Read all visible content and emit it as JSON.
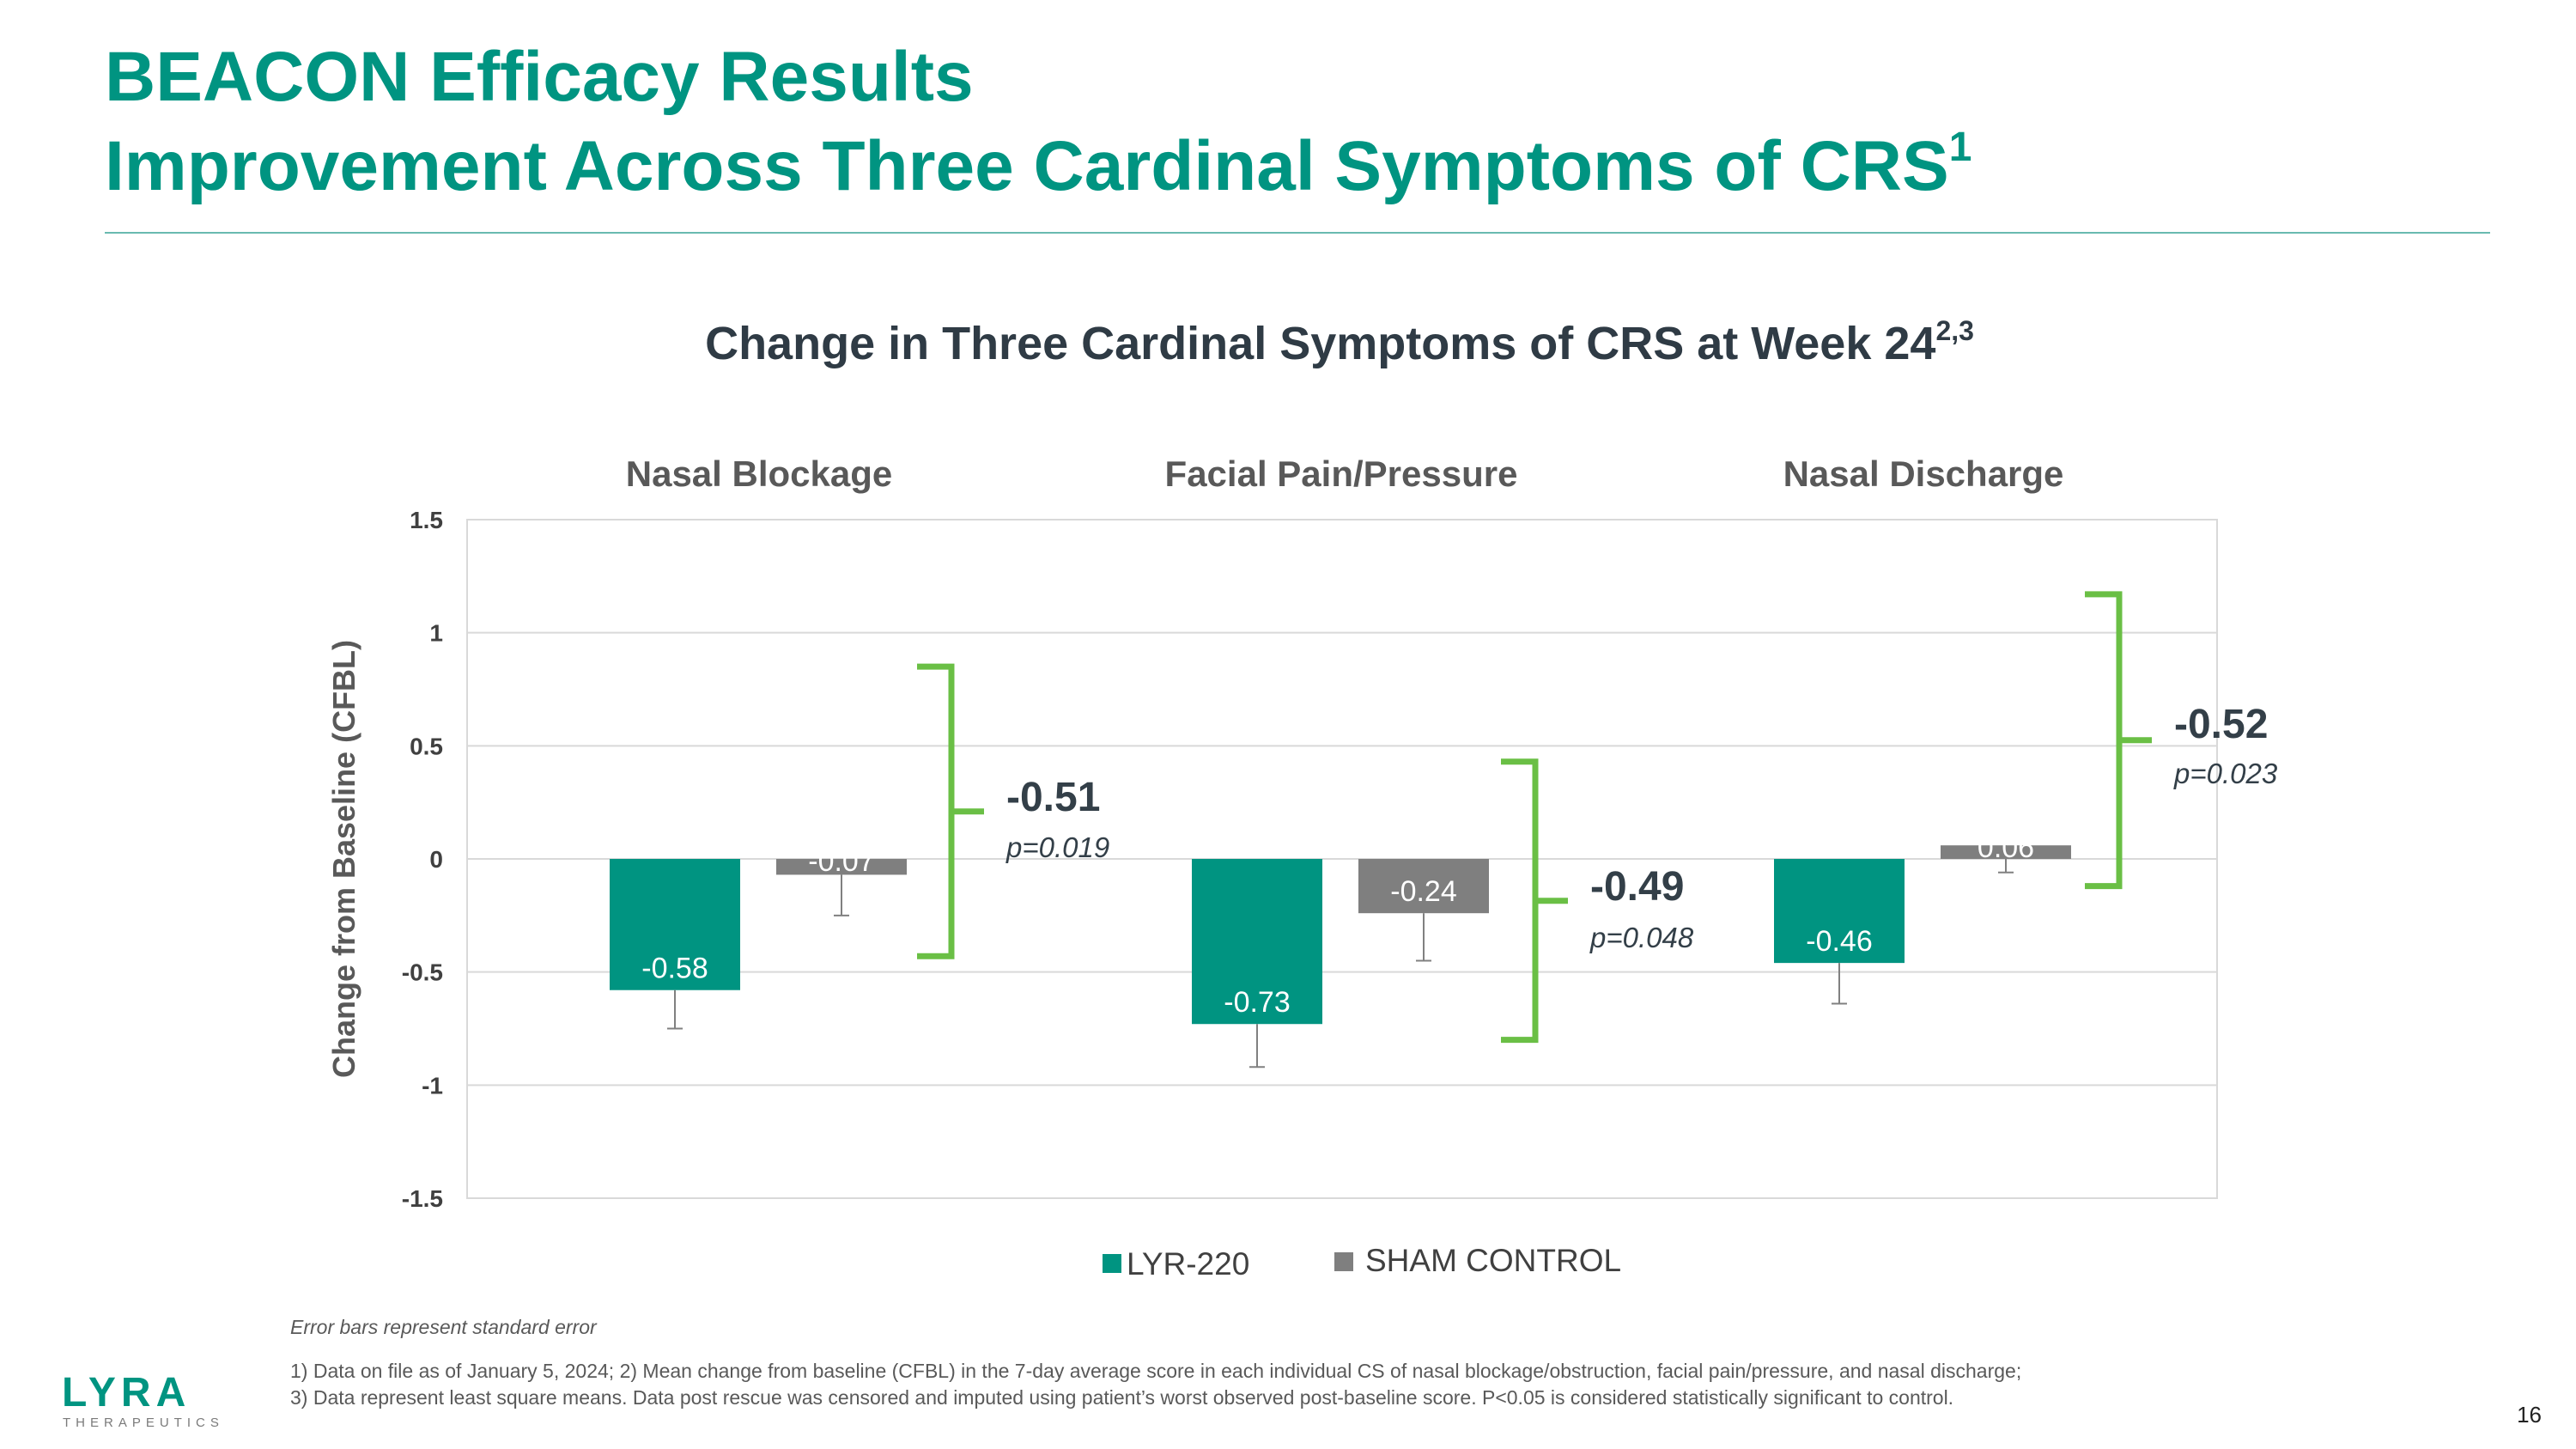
{
  "page": {
    "title_line1": "BEACON Efficacy Results",
    "title_line2": "Improvement Across Three Cardinal Symptoms of CRS",
    "title_sup": "1",
    "page_number": "16",
    "logo_text": "LYRA",
    "logo_subtext": "THERAPEUTICS",
    "footnote_italic": "Error bars represent standard error",
    "footnote1": "1) Data on file as of January 5, 2024; 2) Mean change from baseline (CFBL) in the 7-day average score in each individual CS of nasal blockage/obstruction, facial pain/pressure, and nasal discharge;",
    "footnote2": "3) Data represent least square means. Data post rescue was censored and imputed using patient’s worst observed post-baseline score. P<0.05 is considered statistically significant to control.",
    "colors": {
      "brand": "#009481",
      "lyr": "#009481",
      "sham": "#7f7f7f",
      "bracket": "#6abf45"
    }
  },
  "chart_data": {
    "type": "bar",
    "title": "Change in Three Cardinal Symptoms of CRS at Week 24",
    "title_sup": "2,3",
    "ylabel": "Change from Baseline (CFBL)",
    "ylim": [
      -1.5,
      1.5
    ],
    "yticks": [
      1.5,
      1,
      0.5,
      0,
      -0.5,
      -1,
      -1.5
    ],
    "ytick_labels": [
      "1.5",
      "1",
      "0.5",
      "0",
      "-0.5",
      "-1",
      "-1.5"
    ],
    "categories": [
      "Nasal Blockage",
      "Facial Pain/Pressure",
      "Nasal Discharge"
    ],
    "series": [
      {
        "name": "LYR-220",
        "values": [
          -0.58,
          -0.73,
          -0.46
        ],
        "labels": [
          "-0.58",
          "-0.73",
          "-0.46"
        ],
        "errors": [
          0.17,
          0.19,
          0.18
        ]
      },
      {
        "name": "SHAM CONTROL",
        "values": [
          -0.07,
          -0.24,
          0.06
        ],
        "labels": [
          "-0.07",
          "-0.24",
          "0.06"
        ],
        "errors": [
          0.18,
          0.21,
          0.12
        ]
      }
    ],
    "differences": [
      {
        "value": "-0.51",
        "p": "p=0.019",
        "bracket_range": [
          0.85,
          -0.43
        ]
      },
      {
        "value": "-0.49",
        "p": "p=0.048",
        "bracket_range": [
          0.43,
          -0.8
        ]
      },
      {
        "value": "-0.52",
        "p": "p=0.023",
        "bracket_range": [
          1.17,
          -0.12
        ]
      }
    ],
    "legend": [
      "LYR-220",
      "SHAM CONTROL"
    ],
    "legend_position": "bottom"
  }
}
